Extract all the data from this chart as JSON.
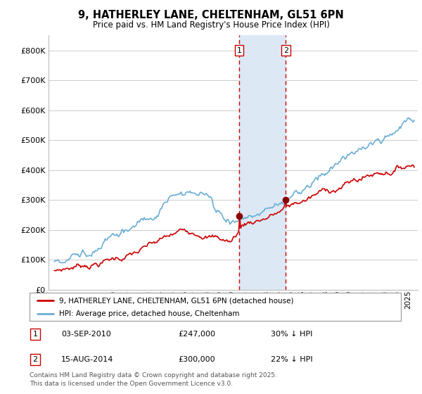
{
  "title": "9, HATHERLEY LANE, CHELTENHAM, GL51 6PN",
  "subtitle": "Price paid vs. HM Land Registry's House Price Index (HPI)",
  "legend_line1": "9, HATHERLEY LANE, CHELTENHAM, GL51 6PN (detached house)",
  "legend_line2": "HPI: Average price, detached house, Cheltenham",
  "transaction1_date": "03-SEP-2010",
  "transaction1_price": "£247,000",
  "transaction1_hpi": "30% ↓ HPI",
  "transaction2_date": "15-AUG-2014",
  "transaction2_price": "£300,000",
  "transaction2_hpi": "22% ↓ HPI",
  "footer": "Contains HM Land Registry data © Crown copyright and database right 2025.\nThis data is licensed under the Open Government Licence v3.0.",
  "hpi_color": "#6baed6",
  "price_color": "#cc0000",
  "marker_color": "#8B0000",
  "vline_color": "#cc0000",
  "highlight_color": "#dce9f5",
  "ylim": [
    0,
    850000
  ],
  "yticks": [
    0,
    100000,
    200000,
    300000,
    400000,
    500000,
    600000,
    700000,
    800000
  ],
  "transaction1_x": 2010.67,
  "transaction2_x": 2014.62,
  "transaction1_y": 247000,
  "transaction2_y": 300000,
  "xmin": 1994.5,
  "xmax": 2025.8
}
